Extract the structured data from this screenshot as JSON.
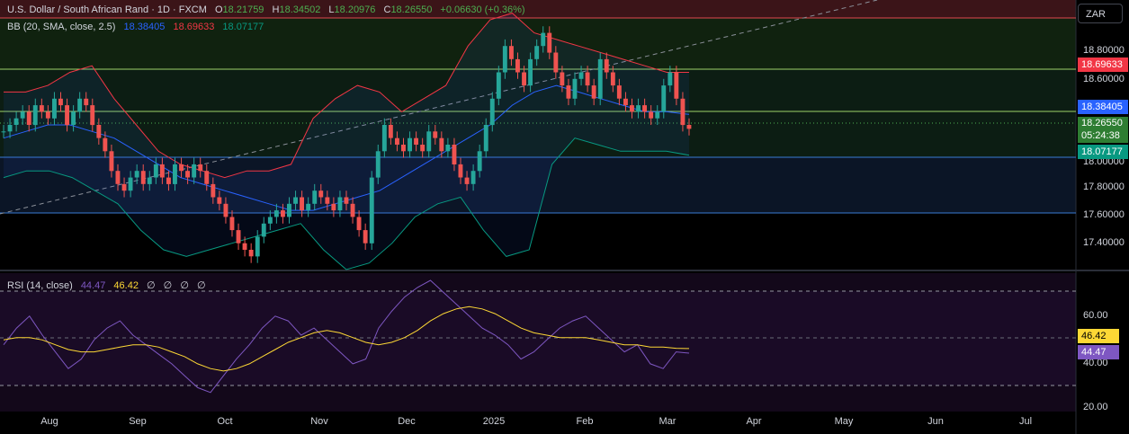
{
  "header": {
    "symbol_title": "U.S. Dollar / South African Rand · 1D · FXCM",
    "open_label": "O",
    "open": "18.21759",
    "high_label": "H",
    "high": "18.34502",
    "low_label": "L",
    "low": "18.20976",
    "close_label": "C",
    "close": "18.26550",
    "change": "+0.06630 (+0.36%)"
  },
  "bb_legend": {
    "label": "BB (20, SMA, close, 2.5)",
    "basis": "18.38405",
    "upper": "18.69633",
    "lower": "18.07177"
  },
  "rsi_legend": {
    "label": "RSI (14, close)",
    "value": "44.47",
    "ma": "46.42",
    "extras": [
      "∅",
      "∅",
      "∅",
      "∅"
    ]
  },
  "currency_button": "ZAR",
  "price_axis": [
    "18.80000",
    "18.60000",
    "17.80000",
    "17.60000",
    "17.40000"
  ],
  "price_tags": {
    "upper": "18.69633",
    "basis": "18.38405",
    "close": "18.26550",
    "countdown": "05:24:38",
    "lower": "18.07177",
    "partial_tick": "18.00000"
  },
  "rsi_axis": [
    "60.00",
    "40.00",
    "20.00"
  ],
  "rsi_tags": {
    "ma": "46.42",
    "rsi": "44.47"
  },
  "time_axis": [
    "Aug",
    "Sep",
    "Oct",
    "Nov",
    "Dec",
    "2025",
    "Feb",
    "Mar",
    "Apr",
    "May",
    "Jun",
    "Jul"
  ],
  "colors": {
    "up": "#26a69a",
    "down": "#ef5350",
    "bb_basis": "#2962ff",
    "bb_upper": "#f23645",
    "bb_lower": "#089981",
    "rsi": "#7e57c2",
    "rsi_ma": "#fdd835",
    "price_tag": "#4caf50"
  },
  "chart_data": {
    "type": "candlestick",
    "series": [
      {
        "name": "Price",
        "values": [
          18.25,
          18.3,
          18.35,
          18.4,
          18.3,
          18.45,
          18.4,
          18.35,
          18.5,
          18.45,
          18.3,
          18.4,
          18.5,
          18.45,
          18.3,
          18.2,
          18.1,
          17.95,
          17.85,
          17.8,
          17.9,
          17.95,
          17.85,
          17.9,
          18.0,
          17.9,
          17.85,
          18.0,
          17.95,
          17.9,
          18.0,
          17.95,
          17.85,
          17.75,
          17.7,
          17.6,
          17.5,
          17.4,
          17.35,
          17.3,
          17.45,
          17.55,
          17.6,
          17.65,
          17.6,
          17.7,
          17.75,
          17.65,
          17.7,
          17.8,
          17.75,
          17.7,
          17.65,
          17.75,
          17.7,
          17.6,
          17.5,
          17.4,
          17.9,
          18.1,
          18.3,
          18.2,
          18.15,
          18.1,
          18.2,
          18.15,
          18.1,
          18.25,
          18.2,
          18.1,
          18.15,
          18.0,
          17.9,
          17.85,
          17.95,
          18.1,
          18.3,
          18.5,
          18.7,
          18.9,
          18.8,
          18.7,
          18.6,
          18.8,
          18.9,
          19.0,
          18.85,
          18.7,
          18.6,
          18.5,
          18.65,
          18.7,
          18.6,
          18.5,
          18.8,
          18.7,
          18.6,
          18.5,
          18.45,
          18.4,
          18.45,
          18.4,
          18.35,
          18.4,
          18.6,
          18.7,
          18.5,
          18.3,
          18.27
        ]
      },
      {
        "name": "BB basis",
        "values": [
          18.2,
          18.25,
          18.3,
          18.3,
          18.25,
          18.2,
          18.1,
          18.0,
          17.9,
          17.85,
          17.8,
          17.75,
          17.7,
          17.65,
          17.65,
          17.7,
          17.75,
          17.8,
          17.9,
          18.0,
          18.1,
          18.2,
          18.3,
          18.45,
          18.55,
          18.6,
          18.55,
          18.5,
          18.45,
          18.4,
          18.4,
          18.38
        ]
      },
      {
        "name": "BB upper",
        "values": [
          18.55,
          18.55,
          18.6,
          18.7,
          18.75,
          18.5,
          18.3,
          18.1,
          18.0,
          17.95,
          17.9,
          17.95,
          17.95,
          18.0,
          18.35,
          18.5,
          18.6,
          18.55,
          18.4,
          18.5,
          18.6,
          18.9,
          19.1,
          19.15,
          19.0,
          18.95,
          18.9,
          18.85,
          18.8,
          18.75,
          18.7,
          18.7
        ]
      },
      {
        "name": "BB lower",
        "values": [
          17.9,
          17.95,
          17.95,
          17.9,
          17.8,
          17.7,
          17.5,
          17.35,
          17.3,
          17.35,
          17.4,
          17.45,
          17.5,
          17.55,
          17.35,
          17.2,
          17.25,
          17.4,
          17.6,
          17.7,
          17.75,
          17.5,
          17.3,
          17.35,
          18.0,
          18.2,
          18.15,
          18.1,
          18.1,
          18.1,
          18.07
        ]
      },
      {
        "name": "RSI",
        "values": [
          48,
          55,
          60,
          52,
          45,
          38,
          42,
          50,
          55,
          58,
          52,
          48,
          44,
          40,
          35,
          30,
          28,
          35,
          42,
          48,
          55,
          60,
          58,
          52,
          55,
          50,
          45,
          40,
          42,
          55,
          62,
          68,
          72,
          75,
          70,
          65,
          60,
          55,
          52,
          48,
          42,
          45,
          50,
          55,
          58,
          60,
          55,
          50,
          45,
          48,
          40,
          38,
          45,
          44.47
        ]
      },
      {
        "name": "RSI MA",
        "values": [
          50,
          51,
          51,
          50,
          48,
          46,
          45,
          45,
          46,
          47,
          48,
          48,
          47,
          45,
          43,
          40,
          38,
          37,
          38,
          40,
          43,
          46,
          49,
          51,
          53,
          54,
          53,
          51,
          49,
          48,
          49,
          51,
          54,
          58,
          61,
          63,
          64,
          63,
          61,
          58,
          55,
          53,
          52,
          51,
          51,
          51,
          50,
          49,
          48,
          48,
          47,
          47,
          46.5,
          46.42
        ]
      }
    ],
    "ylim": [
      17.2,
      19.25
    ],
    "rsi_ylim": [
      20,
      78
    ]
  }
}
